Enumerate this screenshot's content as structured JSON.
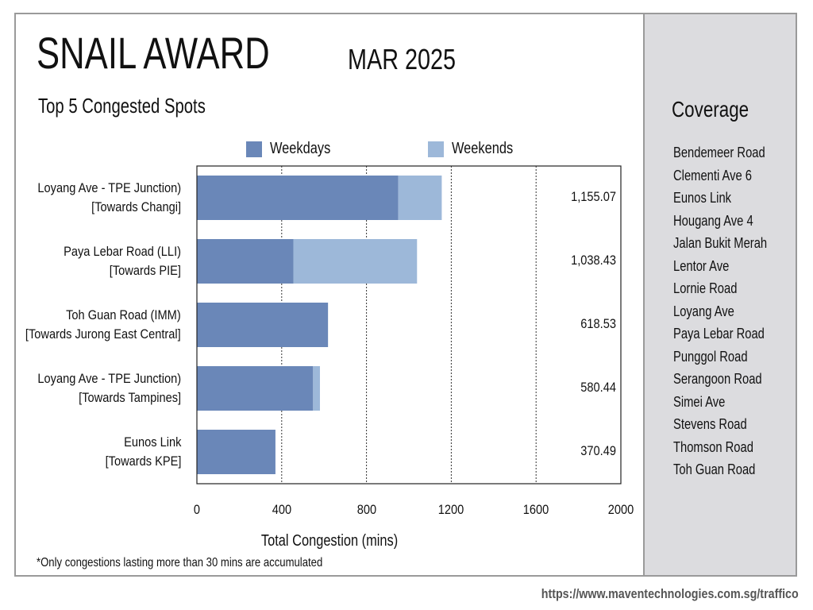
{
  "header": {
    "title": "SNAIL AWARD",
    "month": "MAR 2025",
    "subtitle": "Top 5 Congested Spots"
  },
  "legend": [
    {
      "label": "Weekdays",
      "color": "#6a87b8"
    },
    {
      "label": "Weekends",
      "color": "#9db8d9"
    }
  ],
  "footnote": "*Only congestions lasting more than 30 mins are accumulated",
  "coverage": {
    "title": "Coverage",
    "roads": [
      "Bendemeer Road",
      "Clementi Ave 6",
      "Eunos Link",
      "Hougang Ave 4",
      "Jalan Bukit Merah",
      "Lentor Ave",
      "Lornie Road",
      "Loyang Ave",
      "Paya Lebar Road",
      "Punggol Road",
      "Serangoon Road",
      "Simei Ave",
      "Stevens Road",
      "Thomson Road",
      "Toh Guan Road"
    ]
  },
  "url": "https://www.maventechnologies.com.sg/traffico",
  "chart_data": {
    "type": "bar",
    "orientation": "horizontal",
    "stacked": true,
    "categories": [
      [
        "Loyang Ave - TPE Junction)",
        "[Towards Changi]"
      ],
      [
        "Paya Lebar Road (LLI)",
        "[Towards PIE]"
      ],
      [
        "Toh Guan Road (IMM)",
        "[Towards Jurong East Central]"
      ],
      [
        "Loyang Ave - TPE Junction)",
        "[Towards Tampines]"
      ],
      [
        "Eunos Link",
        "[Towards KPE]"
      ]
    ],
    "series": [
      {
        "name": "Weekdays",
        "color": "#6a87b8",
        "values": [
          950,
          455,
          618.53,
          548,
          370.49
        ]
      },
      {
        "name": "Weekends",
        "color": "#9db8d9",
        "values": [
          205.07,
          583.43,
          0,
          32.44,
          0
        ]
      }
    ],
    "totals": [
      "1,155.07",
      "1,038.43",
      "618.53",
      "580.44",
      "370.49"
    ],
    "xlim": [
      0,
      2000
    ],
    "xticks": [
      "0",
      "400",
      "800",
      "1200",
      "1600",
      "2000"
    ],
    "xlabel": "Total Congestion (mins)",
    "grid": "vertical dotted"
  }
}
